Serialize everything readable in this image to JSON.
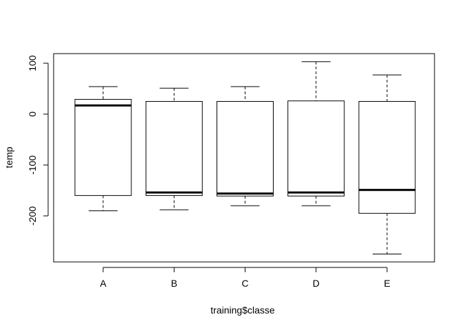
{
  "chart_data": {
    "type": "boxplot",
    "xlabel": "training$classe",
    "ylabel": "temp",
    "categories": [
      "A",
      "B",
      "C",
      "D",
      "E"
    ],
    "boxes": [
      {
        "category": "A",
        "whisker_low": -190,
        "q1": -160,
        "median": 17,
        "q3": 29,
        "whisker_high": 54
      },
      {
        "category": "B",
        "whisker_low": -188,
        "q1": -160,
        "median": -154,
        "q3": 25,
        "whisker_high": 51
      },
      {
        "category": "C",
        "whisker_low": -180,
        "q1": -161,
        "median": -156,
        "q3": 25,
        "whisker_high": 54
      },
      {
        "category": "D",
        "whisker_low": -180,
        "q1": -161,
        "median": -154,
        "q3": 26,
        "whisker_high": 103
      },
      {
        "category": "E",
        "whisker_low": -275,
        "q1": -195,
        "median": -149,
        "q3": 25,
        "whisker_high": 77
      }
    ],
    "yticks": [
      100,
      0,
      -100,
      -200
    ],
    "ytick_labels": [
      "100",
      "0",
      "-100",
      "-200"
    ],
    "ylim": [
      -290,
      118
    ],
    "grid": false,
    "legend": "none"
  }
}
